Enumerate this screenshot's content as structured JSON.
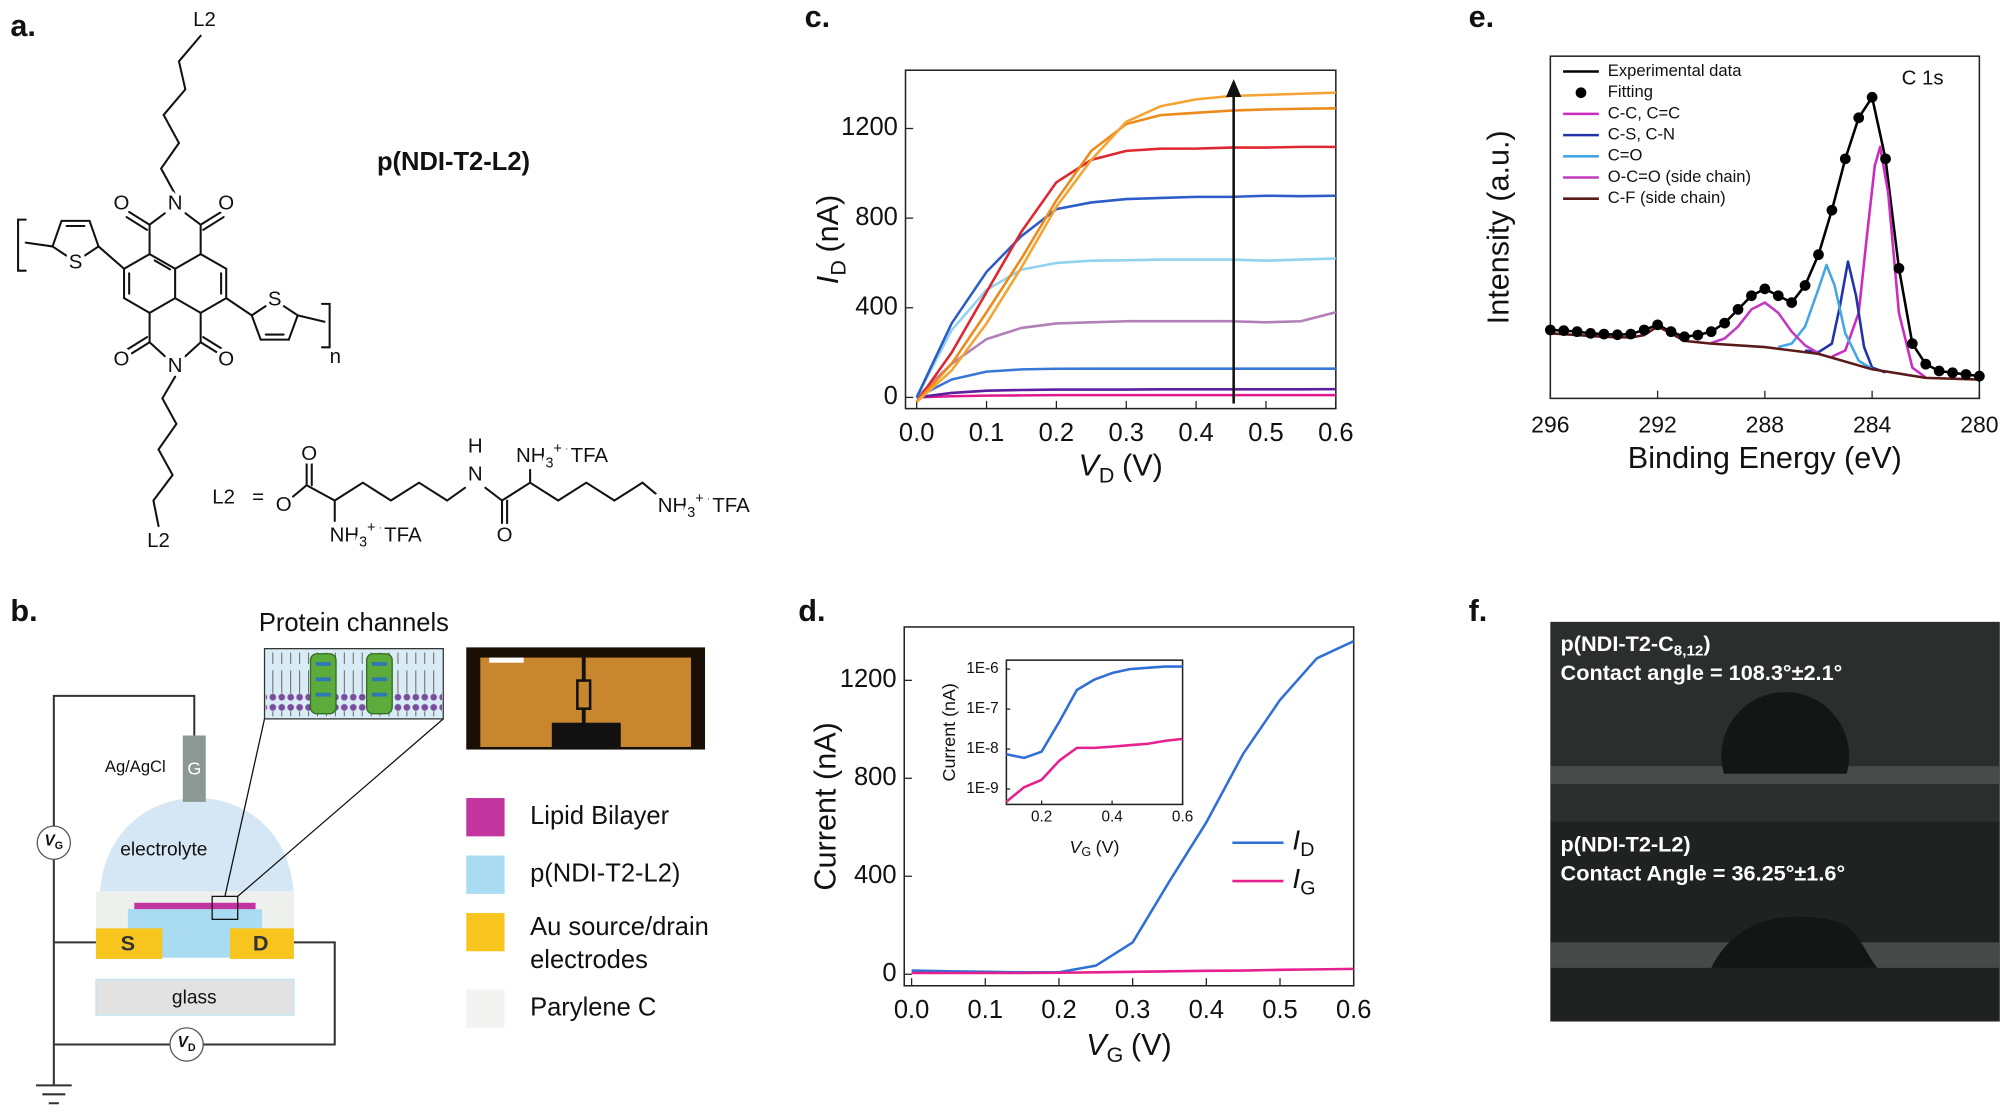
{
  "panel_a": {
    "label": "a.",
    "polymer_name": "p(NDI-T2-L2)",
    "side_chains": [
      "L2",
      "L2"
    ],
    "repeat": "n",
    "atoms": [
      "O",
      "N",
      "O",
      "S",
      "S",
      "O",
      "N",
      "O"
    ],
    "l2_definition": {
      "label": "L2",
      "equals": "=",
      "atoms": [
        "O",
        "O",
        "H",
        "N",
        "O"
      ],
      "ammonium": [
        {
          "main": "NH",
          "sub": "3",
          "sup": "+ -",
          "tail": "TFA"
        },
        {
          "main": "NH",
          "sub": "3",
          "sup": "+ -",
          "tail": "TFA"
        },
        {
          "main": "NH",
          "sub": "3",
          "sup": "+ -",
          "tail": "TFA"
        }
      ]
    }
  },
  "panel_b": {
    "label": "b.",
    "inset_title": "Protein channels",
    "reference_electrode": "Ag/AgCl",
    "gate": "G",
    "gate_voltage": {
      "symbol": "V",
      "sub": "G"
    },
    "drain_voltage": {
      "symbol": "V",
      "sub": "D"
    },
    "electrolyte": "electrolyte",
    "source": "S",
    "drain": "D",
    "substrate": "glass",
    "legend": [
      [
        "Lipid Bilayer"
      ],
      [
        "p(NDI-T2-L2)"
      ],
      [
        "Au source/drain",
        "electrodes"
      ],
      [
        "Parylene C"
      ]
    ]
  },
  "panel_f": {
    "label": "f.",
    "samples": [
      {
        "name": {
          "main": "p(NDI-T2-C",
          "sub": "8,12",
          "tail": ")"
        },
        "measurement": "Contact angle = 108.3°±2.1°"
      },
      {
        "name": {
          "main": "p(NDI-T2-L2)"
        },
        "measurement": "Contact Angle = 36.25°±1.6°"
      }
    ]
  },
  "chart_data": [
    {
      "type": "line",
      "label": "c.",
      "x": [
        0,
        0.05,
        0.1,
        0.15,
        0.2,
        0.25,
        0.3,
        0.35,
        0.4,
        0.45,
        0.5,
        0.55,
        0.6
      ],
      "xlim": [
        -0.016,
        0.6
      ],
      "ylim": [
        -50,
        1460
      ],
      "xticks": [
        {
          "value": 0,
          "label": "0.0"
        },
        0.1,
        0.2,
        0.3,
        0.4,
        0.5,
        0.6
      ],
      "yticks": [
        0,
        400,
        800,
        1200
      ],
      "x_label": {
        "symbol": "V",
        "sub": "D",
        "unit": "(V)"
      },
      "y_label": {
        "symbol": "I",
        "sub": "D",
        "unit": "(nA)"
      },
      "series": [
        {
          "color": "#e0198f",
          "values": [
            0,
            5,
            8,
            9,
            10,
            10,
            10,
            10,
            10,
            10,
            10,
            10,
            10
          ]
        },
        {
          "color": "#5b1fa0",
          "values": [
            0,
            20,
            30,
            33,
            35,
            35,
            35,
            36,
            36,
            36,
            36,
            36,
            37
          ]
        },
        {
          "color": "#3a78d8",
          "values": [
            0,
            80,
            115,
            125,
            128,
            128,
            128,
            128,
            128,
            128,
            128,
            128,
            128
          ]
        },
        {
          "color": "#b27fb8",
          "values": [
            0,
            150,
            260,
            310,
            330,
            335,
            340,
            340,
            340,
            340,
            335,
            340,
            380
          ]
        },
        {
          "color": "#90d2f0",
          "values": [
            0,
            300,
            480,
            570,
            600,
            610,
            612,
            615,
            615,
            615,
            610,
            615,
            620
          ]
        },
        {
          "color": "#2c5cc8",
          "values": [
            0,
            330,
            560,
            720,
            840,
            870,
            885,
            890,
            895,
            895,
            900,
            898,
            900
          ]
        },
        {
          "color": "#e0262e",
          "values": [
            -20,
            200,
            470,
            740,
            960,
            1060,
            1100,
            1110,
            1110,
            1115,
            1115,
            1118,
            1118
          ]
        },
        {
          "color": "#ec8a1c",
          "values": [
            -20,
            150,
            380,
            620,
            880,
            1100,
            1220,
            1260,
            1270,
            1280,
            1285,
            1288,
            1290
          ]
        },
        {
          "color": "#f5a434",
          "values": [
            -20,
            120,
            330,
            580,
            850,
            1060,
            1230,
            1300,
            1330,
            1345,
            1350,
            1355,
            1360
          ]
        }
      ]
    },
    {
      "type": "line",
      "label": "d.",
      "x": [
        0,
        0.05,
        0.1,
        0.15,
        0.2,
        0.25,
        0.3,
        0.35,
        0.4,
        0.45,
        0.5,
        0.55,
        0.6
      ],
      "xlim": [
        -0.01,
        0.6
      ],
      "ylim": [
        -47,
        1418
      ],
      "xticks": [
        {
          "value": 0,
          "label": "0.0"
        },
        0.1,
        0.2,
        0.3,
        0.4,
        0.5,
        0.6
      ],
      "yticks": [
        0,
        400,
        800,
        1200
      ],
      "x_label": {
        "symbol": "V",
        "sub": "G",
        "unit": "(V)"
      },
      "y_label": "Current (nA)",
      "legend": "right",
      "series": [
        {
          "name": {
            "symbol": "I",
            "sub": "D"
          },
          "color": "#2f6fd6",
          "values": [
            15,
            12,
            10,
            8,
            8,
            35,
            130,
            380,
            620,
            900,
            1120,
            1290,
            1360
          ]
        },
        {
          "name": {
            "symbol": "I",
            "sub": "G"
          },
          "color": "#e6208f",
          "values": [
            5,
            5,
            5,
            5,
            6,
            8,
            10,
            12,
            14,
            15,
            18,
            20,
            22
          ]
        }
      ]
    },
    {
      "type": "line",
      "x": [
        0.1,
        0.15,
        0.2,
        0.25,
        0.3,
        0.35,
        0.4,
        0.45,
        0.5,
        0.55,
        0.6
      ],
      "xlim": [
        0.1,
        0.6
      ],
      "ylim": [
        4.1e-10,
        1.68e-06
      ],
      "log_y": true,
      "xticks": [
        0.2,
        0.4,
        0.6
      ],
      "yticks": [
        {
          "value": 1e-09,
          "label": "1E-9"
        },
        {
          "value": 1e-08,
          "label": "1E-8"
        },
        {
          "value": 1e-07,
          "label": "1E-7"
        },
        {
          "value": 1e-06,
          "label": "1E-6"
        }
      ],
      "x_label": {
        "symbol": "V",
        "sub": "G",
        "unit": "(V)"
      },
      "y_label": "Current (nA)",
      "series": [
        {
          "color": "#2f6fd6",
          "values": [
            7.4e-09,
            6e-09,
            8.6e-09,
            4.8e-08,
            3e-07,
            5.5e-07,
            8e-07,
            1e-06,
            1.08e-06,
            1.16e-06,
            1.16e-06
          ]
        },
        {
          "color": "#e6208f",
          "values": [
            4.8e-10,
            1.1e-09,
            1.7e-09,
            5.1e-09,
            1.07e-08,
            1.07e-08,
            1.15e-08,
            1.25e-08,
            1.35e-08,
            1.6e-08,
            1.8e-08
          ]
        }
      ]
    },
    {
      "type": "line",
      "label": "e.",
      "x": [
        296,
        295.5,
        295,
        294.5,
        294,
        293.5,
        293,
        292.5,
        292,
        291.5,
        291,
        290.5,
        290,
        289.5,
        289,
        288.5,
        288,
        287.5,
        287,
        286.5,
        286,
        285.5,
        285,
        284.5,
        284,
        283.5,
        283,
        282.5,
        282,
        281.5,
        281,
        280.5,
        280
      ],
      "xlim": [
        296,
        280
      ],
      "ylim": [
        0,
        100
      ],
      "xticks": [
        296,
        292,
        288,
        284,
        280
      ],
      "x_label": "Binding Energy (eV)",
      "y_label": "Intensity (a.u.)",
      "annotation": "C 1s",
      "legend": "upper left",
      "series": [
        {
          "name": "Experimental data",
          "color": "#000000",
          "values": [
            20,
            19.8,
            19.5,
            19,
            18.8,
            18.6,
            18.8,
            20,
            21.5,
            19.5,
            18,
            18.5,
            19.5,
            22,
            26,
            30,
            32,
            30,
            28,
            33,
            42,
            55,
            70,
            82,
            88,
            70,
            38,
            16,
            10,
            8,
            7.5,
            7,
            6.5
          ]
        },
        {
          "name": "Fitting",
          "color": "#000000",
          "style": "dots",
          "values": [
            20,
            19.8,
            19.5,
            19,
            18.8,
            18.6,
            18.8,
            20,
            21.5,
            19.5,
            18,
            18.5,
            19.5,
            22,
            26,
            30,
            32,
            30,
            28,
            33,
            42,
            55,
            70,
            82,
            88,
            70,
            38,
            16,
            10,
            8,
            7.5,
            7,
            6.5
          ]
        },
        {
          "name": "C-C, C=C",
          "color": "#cc2bbf",
          "x": [
            285.5,
            285,
            284.5,
            284.2,
            283.9,
            283.7,
            283.4,
            283,
            282.5,
            282
          ],
          "values": [
            12.2,
            14,
            25,
            47,
            68,
            73.5,
            60,
            25,
            9,
            6.1
          ]
        },
        {
          "name": "C-S, C-N",
          "color": "#2233aa",
          "x": [
            286.5,
            286,
            285.5,
            285.2,
            284.9,
            284.6,
            284.3,
            284,
            283.5
          ],
          "values": [
            14,
            13.5,
            16,
            27,
            40,
            30,
            15,
            9,
            7.6
          ]
        },
        {
          "name": "C=O",
          "color": "#45a6e6",
          "x": [
            287.5,
            287,
            286.5,
            286,
            285.7,
            285.4,
            285,
            284.5,
            284
          ],
          "values": [
            15,
            16,
            21,
            32,
            39,
            33,
            19,
            11,
            8.6
          ]
        },
        {
          "name": "O-C=O (side chain)",
          "color": "#c03bc0",
          "x": [
            290,
            289.5,
            289,
            288.5,
            288,
            287.5,
            287,
            286.5,
            286
          ],
          "values": [
            16.2,
            17.5,
            21,
            26,
            28,
            25,
            19.5,
            15.5,
            13.2
          ]
        },
        {
          "name": "C-F (side chain)",
          "color": "#5a1a1a",
          "x": [
            296,
            294,
            293,
            292.5,
            292,
            291.5,
            291,
            290,
            288,
            286,
            284,
            282,
            280
          ],
          "values": [
            19,
            18,
            17.8,
            18.5,
            21,
            19,
            16.8,
            16,
            15,
            13,
            8.5,
            6,
            5.5
          ]
        }
      ]
    }
  ]
}
